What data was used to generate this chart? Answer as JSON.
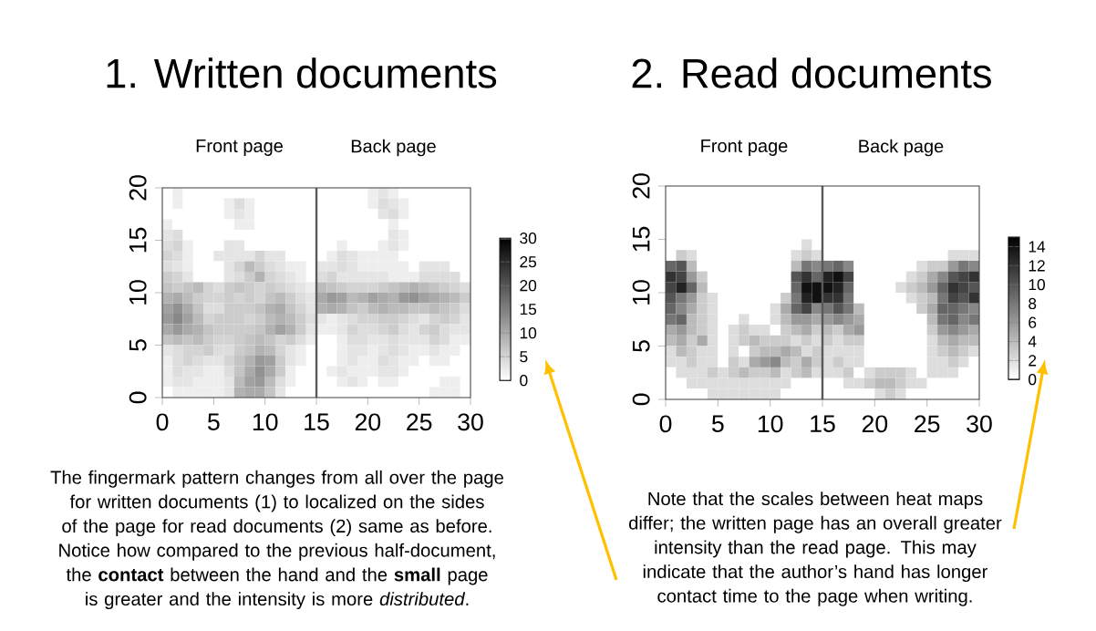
{
  "chart_data": [
    {
      "type": "heatmap",
      "title": "1. Written documents",
      "cells": [
        [
          0,
          2,
          0,
          0,
          0,
          0,
          0,
          0,
          0,
          0,
          0,
          0,
          0,
          0,
          0,
          0,
          0,
          0,
          0,
          0,
          2,
          3,
          2,
          0,
          0,
          0,
          0,
          0,
          0,
          0
        ],
        [
          0,
          2,
          0,
          0,
          0,
          0,
          2,
          4,
          2,
          0,
          0,
          0,
          0,
          0,
          0,
          0,
          0,
          0,
          0,
          0,
          2,
          4,
          3,
          2,
          0,
          0,
          0,
          0,
          0,
          0
        ],
        [
          0,
          0,
          0,
          0,
          0,
          0,
          2,
          3,
          2,
          0,
          0,
          0,
          0,
          0,
          0,
          0,
          0,
          0,
          0,
          0,
          0,
          3,
          4,
          2,
          0,
          0,
          0,
          0,
          0,
          0
        ],
        [
          2,
          0,
          0,
          0,
          0,
          0,
          0,
          2,
          2,
          0,
          0,
          0,
          0,
          0,
          0,
          0,
          0,
          0,
          0,
          0,
          0,
          0,
          2,
          0,
          0,
          0,
          0,
          0,
          0,
          0
        ],
        [
          3,
          4,
          0,
          0,
          0,
          0,
          0,
          0,
          0,
          0,
          0,
          0,
          0,
          0,
          0,
          0,
          0,
          0,
          0,
          0,
          0,
          0,
          3,
          2,
          0,
          0,
          0,
          0,
          0,
          0
        ],
        [
          4,
          5,
          2,
          0,
          0,
          0,
          3,
          3,
          0,
          0,
          0,
          0,
          0,
          0,
          0,
          0,
          0,
          2,
          0,
          0,
          0,
          2,
          3,
          2,
          0,
          0,
          0,
          0,
          0,
          0
        ],
        [
          5,
          4,
          2,
          0,
          0,
          3,
          3,
          3,
          3,
          5,
          3,
          3,
          0,
          0,
          0,
          0,
          2,
          4,
          3,
          2,
          2,
          2,
          2,
          0,
          0,
          0,
          0,
          0,
          0,
          0
        ],
        [
          4,
          3,
          2,
          0,
          0,
          0,
          3,
          5,
          8,
          6,
          4,
          3,
          2,
          2,
          0,
          3,
          3,
          4,
          3,
          2,
          2,
          2,
          2,
          2,
          0,
          3,
          3,
          3,
          0,
          0
        ],
        [
          6,
          5,
          3,
          0,
          0,
          0,
          3,
          4,
          6,
          9,
          5,
          4,
          3,
          2,
          0,
          4,
          5,
          3,
          3,
          3,
          3,
          3,
          2,
          2,
          2,
          4,
          4,
          4,
          4,
          0
        ],
        [
          7,
          6,
          7,
          8,
          5,
          4,
          6,
          7,
          6,
          5,
          6,
          5,
          4,
          3,
          2,
          8,
          7,
          6,
          5,
          5,
          5,
          6,
          7,
          8,
          9,
          8,
          7,
          6,
          5,
          4
        ],
        [
          9,
          10,
          8,
          6,
          5,
          5,
          6,
          5,
          6,
          5,
          7,
          8,
          6,
          4,
          3,
          10,
          12,
          11,
          8,
          9,
          11,
          10,
          9,
          12,
          13,
          11,
          10,
          9,
          8,
          6
        ],
        [
          11,
          13,
          10,
          7,
          4,
          4,
          6,
          6,
          6,
          7,
          9,
          10,
          7,
          5,
          3,
          9,
          10,
          9,
          7,
          6,
          8,
          9,
          8,
          8,
          7,
          7,
          8,
          7,
          6,
          4
        ],
        [
          12,
          14,
          11,
          8,
          5,
          6,
          6,
          6,
          5,
          6,
          8,
          9,
          8,
          6,
          4,
          3,
          2,
          3,
          4,
          5,
          5,
          6,
          6,
          5,
          4,
          3,
          5,
          6,
          5,
          3
        ],
        [
          10,
          12,
          10,
          9,
          7,
          6,
          6,
          6,
          6,
          7,
          9,
          11,
          9,
          6,
          3,
          2,
          2,
          3,
          5,
          4,
          4,
          5,
          6,
          4,
          3,
          5,
          6,
          4,
          3,
          3
        ],
        [
          7,
          8,
          7,
          8,
          6,
          5,
          5,
          6,
          7,
          8,
          7,
          5,
          6,
          4,
          2,
          0,
          0,
          2,
          4,
          4,
          3,
          3,
          4,
          3,
          3,
          3,
          5,
          4,
          2,
          2
        ],
        [
          3,
          4,
          5,
          5,
          6,
          4,
          4,
          6,
          7,
          9,
          8,
          5,
          3,
          2,
          0,
          0,
          0,
          2,
          3,
          3,
          2,
          3,
          4,
          3,
          2,
          2,
          3,
          2,
          2,
          0
        ],
        [
          2,
          4,
          5,
          4,
          3,
          3,
          5,
          7,
          9,
          12,
          11,
          6,
          3,
          2,
          0,
          0,
          0,
          2,
          3,
          2,
          2,
          4,
          3,
          2,
          2,
          0,
          2,
          2,
          0,
          0
        ],
        [
          2,
          4,
          3,
          3,
          2,
          2,
          4,
          7,
          10,
          13,
          10,
          6,
          2,
          0,
          0,
          0,
          2,
          3,
          2,
          2,
          2,
          3,
          3,
          2,
          0,
          0,
          0,
          0,
          0,
          0
        ],
        [
          2,
          3,
          3,
          2,
          2,
          2,
          3,
          8,
          11,
          12,
          8,
          4,
          2,
          0,
          0,
          0,
          0,
          2,
          3,
          2,
          0,
          2,
          2,
          0,
          0,
          0,
          0,
          2,
          2,
          0
        ],
        [
          0,
          2,
          2,
          2,
          2,
          2,
          3,
          9,
          10,
          10,
          7,
          3,
          0,
          0,
          0,
          0,
          0,
          0,
          0,
          0,
          0,
          0,
          0,
          0,
          0,
          0,
          2,
          2,
          2,
          0
        ]
      ],
      "xlim": [
        0,
        30
      ],
      "ylim": [
        0,
        20
      ],
      "xticks": [
        0,
        5,
        10,
        15,
        20,
        25,
        30
      ],
      "yticks": [
        0,
        5,
        10,
        15,
        20
      ],
      "clim": [
        0,
        30
      ],
      "cticks": [
        0,
        5,
        10,
        15,
        20,
        25,
        30
      ],
      "ref_lines": [
        {
          "axis": "x",
          "value": 15,
          "color": "#595959"
        }
      ],
      "annotations": [
        "Front page",
        "Back page",
        "The fingermark pattern changes from all over the page for written documents (1) to localized on the sides of the page for read documents (2) same as before. Notice how compared to the previous half-document, the **contact** between the hand and the **small** page is greater and the intensity is more *distributed*."
      ]
    },
    {
      "type": "heatmap",
      "title": "2. Read documents",
      "cells": [
        [
          0,
          0,
          0,
          0,
          0,
          0,
          0,
          0,
          0,
          0,
          0,
          0,
          0,
          0,
          0,
          0,
          0,
          0,
          0,
          0,
          0,
          0,
          0,
          0,
          0,
          0,
          0,
          0,
          0,
          0
        ],
        [
          0,
          0,
          0,
          0,
          0,
          0,
          0,
          0,
          0,
          0,
          0,
          0,
          0,
          0,
          0,
          0,
          0,
          0,
          0,
          0,
          0,
          0,
          0,
          0,
          0,
          0,
          0,
          0,
          0,
          0
        ],
        [
          0,
          0,
          0,
          0,
          0,
          0,
          0,
          0,
          0,
          0,
          0,
          0,
          0,
          0,
          0,
          0,
          0,
          0,
          0,
          0,
          0,
          0,
          0,
          0,
          0,
          0,
          0,
          0,
          0,
          0
        ],
        [
          0,
          0,
          0,
          0,
          0,
          0,
          0,
          0,
          0,
          0,
          0,
          0,
          0,
          0,
          0,
          0,
          0,
          0,
          0,
          0,
          0,
          0,
          0,
          0,
          0,
          0,
          0,
          0,
          0,
          0
        ],
        [
          0,
          0,
          0,
          0,
          0,
          0,
          0,
          0,
          0,
          0,
          0,
          0,
          0,
          0,
          0,
          0,
          0,
          0,
          0,
          0,
          0,
          0,
          0,
          0,
          0,
          0,
          0,
          0,
          0,
          0
        ],
        [
          0,
          0,
          0,
          0,
          0,
          0,
          0,
          0,
          0,
          0,
          0,
          0,
          0,
          2,
          0,
          0,
          0,
          0,
          0,
          0,
          0,
          0,
          0,
          0,
          0,
          0,
          0,
          0,
          0,
          0
        ],
        [
          0,
          3,
          2,
          0,
          0,
          0,
          0,
          0,
          0,
          0,
          0,
          0,
          2,
          3,
          2,
          0,
          0,
          0,
          0,
          0,
          0,
          0,
          0,
          0,
          0,
          0,
          0,
          2,
          2,
          2
        ],
        [
          9,
          10,
          4,
          0,
          0,
          0,
          0,
          0,
          0,
          0,
          0,
          0,
          4,
          8,
          7,
          8,
          9,
          7,
          0,
          0,
          0,
          0,
          0,
          0,
          2,
          3,
          3,
          6,
          8,
          7
        ],
        [
          12,
          11,
          6,
          3,
          0,
          0,
          0,
          0,
          0,
          0,
          0,
          0,
          10,
          12,
          9,
          13,
          14,
          11,
          0,
          0,
          0,
          0,
          0,
          2,
          3,
          5,
          7,
          10,
          11,
          12
        ],
        [
          11,
          13,
          9,
          4,
          0,
          0,
          0,
          0,
          0,
          0,
          0,
          0,
          9,
          14,
          14,
          14,
          13,
          9,
          0,
          0,
          0,
          0,
          2,
          3,
          4,
          6,
          9,
          12,
          11,
          10
        ],
        [
          10,
          8,
          6,
          3,
          2,
          0,
          0,
          0,
          0,
          0,
          0,
          3,
          8,
          13,
          14,
          12,
          12,
          8,
          0,
          0,
          0,
          0,
          0,
          2,
          3,
          4,
          8,
          11,
          10,
          12
        ],
        [
          9,
          7,
          5,
          3,
          2,
          0,
          0,
          0,
          0,
          0,
          2,
          5,
          9,
          11,
          7,
          8,
          10,
          8,
          4,
          0,
          0,
          0,
          0,
          0,
          3,
          5,
          9,
          9,
          8,
          7
        ],
        [
          8,
          9,
          4,
          3,
          2,
          0,
          0,
          2,
          0,
          0,
          2,
          4,
          6,
          6,
          5,
          6,
          7,
          6,
          5,
          0,
          0,
          0,
          0,
          0,
          0,
          4,
          8,
          9,
          7,
          8
        ],
        [
          5,
          6,
          4,
          3,
          2,
          0,
          2,
          3,
          2,
          2,
          0,
          3,
          4,
          5,
          3,
          4,
          3,
          5,
          6,
          0,
          0,
          0,
          0,
          0,
          0,
          3,
          6,
          7,
          6,
          5
        ],
        [
          4,
          5,
          3,
          5,
          2,
          0,
          2,
          3,
          4,
          3,
          3,
          3,
          2,
          3,
          2,
          3,
          2,
          3,
          3,
          0,
          0,
          0,
          0,
          0,
          0,
          2,
          4,
          5,
          4,
          4
        ],
        [
          2,
          4,
          3,
          2,
          2,
          0,
          2,
          0,
          3,
          4,
          4,
          5,
          4,
          2,
          3,
          2,
          2,
          2,
          2,
          0,
          0,
          0,
          0,
          0,
          0,
          2,
          3,
          4,
          3,
          2
        ],
        [
          2,
          2,
          3,
          2,
          2,
          0,
          3,
          2,
          5,
          6,
          7,
          4,
          3,
          5,
          3,
          2,
          3,
          2,
          2,
          0,
          0,
          0,
          0,
          0,
          0,
          2,
          2,
          3,
          2,
          0
        ],
        [
          0,
          2,
          2,
          2,
          3,
          2,
          3,
          4,
          3,
          3,
          4,
          2,
          3,
          4,
          2,
          2,
          2,
          3,
          0,
          2,
          3,
          3,
          3,
          2,
          0,
          2,
          2,
          2,
          0,
          0
        ],
        [
          0,
          0,
          2,
          2,
          2,
          2,
          2,
          2,
          2,
          2,
          2,
          2,
          0,
          0,
          0,
          0,
          0,
          2,
          2,
          3,
          4,
          4,
          3,
          2,
          2,
          0,
          0,
          0,
          0,
          0
        ],
        [
          0,
          0,
          0,
          0,
          2,
          2,
          2,
          2,
          2,
          2,
          2,
          0,
          0,
          0,
          0,
          0,
          0,
          0,
          0,
          0,
          2,
          3,
          2,
          0,
          0,
          0,
          0,
          0,
          0,
          0
        ]
      ],
      "xlim": [
        0,
        30
      ],
      "ylim": [
        0,
        20
      ],
      "xticks": [
        0,
        5,
        10,
        15,
        20,
        25,
        30
      ],
      "yticks": [
        0,
        5,
        10,
        15,
        20
      ],
      "clim": [
        0,
        15
      ],
      "cticks": [
        0,
        2,
        4,
        6,
        8,
        10,
        12,
        14
      ],
      "ref_lines": [
        {
          "axis": "x",
          "value": 15,
          "color": "#595959"
        }
      ],
      "annotations": [
        "Front page",
        "Back page",
        "Note that the scales between heat maps differ; the written page has an overall greater intensity than the read page. This may indicate that the author’s hand has longer contact time to the page when writing."
      ]
    }
  ]
}
